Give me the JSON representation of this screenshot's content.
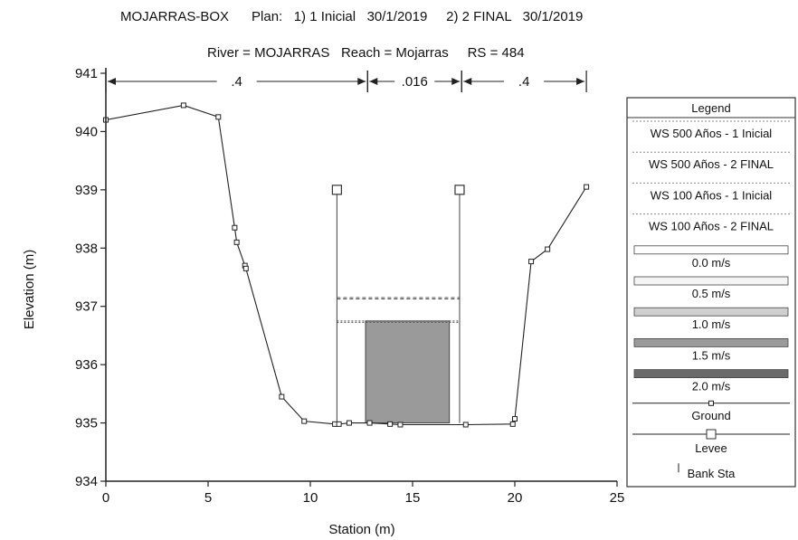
{
  "chart_data": {
    "type": "line",
    "title": "MOJARRAS-BOX      Plan:   1) 1 Inicial   30/1/2019     2) 2 FINAL   30/1/2019",
    "subtitle": "River = MOJARRAS   Reach = Mojarras     RS = 484",
    "xlabel": "Station (m)",
    "ylabel": "Elevation (m)",
    "xlim": [
      0,
      25
    ],
    "ylim": [
      934,
      941
    ],
    "x_ticks": [
      "0",
      "5",
      "10",
      "15",
      "20",
      "25"
    ],
    "y_ticks": [
      "934",
      "935",
      "936",
      "937",
      "938",
      "939",
      "940",
      "941"
    ],
    "mannings_n": [
      {
        "label": ".4",
        "from": 0,
        "to": 12.8
      },
      {
        "label": ".016",
        "from": 12.8,
        "to": 17.4
      },
      {
        "label": ".4",
        "from": 17.4,
        "to": 23.5
      }
    ],
    "ground": {
      "name": "Ground",
      "x": [
        0,
        3.8,
        5.5,
        6.3,
        6.4,
        6.8,
        6.85,
        8.6,
        9.7,
        11.2,
        11.4,
        11.9,
        12.9,
        13.9,
        14.4,
        17.6,
        19.9,
        20.0,
        20.8,
        21.6,
        23.5
      ],
      "y": [
        940.2,
        940.45,
        940.25,
        938.35,
        938.1,
        937.7,
        937.65,
        935.45,
        935.03,
        934.98,
        934.98,
        935.0,
        935.0,
        934.98,
        934.97,
        934.97,
        934.98,
        935.07,
        937.77,
        937.98,
        939.05
      ]
    },
    "levees": [
      {
        "name": "Levee",
        "x": 11.3,
        "y": 939.0
      },
      {
        "name": "Levee",
        "x": 17.3,
        "y": 939.0
      }
    ],
    "water_surfaces": [
      {
        "name": "WS 500 Años - 1 Inicial",
        "y": 937.15,
        "x_from": 11.3,
        "x_to": 17.3
      },
      {
        "name": "WS 500 Años - 2 FINAL",
        "y": 937.15,
        "x_from": 11.3,
        "x_to": 17.3
      },
      {
        "name": "WS 100 Años - 1 Inicial",
        "y": 936.75,
        "x_from": 11.3,
        "x_to": 17.3
      },
      {
        "name": "WS 100 Años - 2 FINAL",
        "y": 936.75,
        "x_from": 11.3,
        "x_to": 17.3
      }
    ],
    "velocity_block": {
      "x_from": 12.7,
      "x_to": 16.8,
      "y_from": 935.0,
      "y_to": 936.75,
      "velocity_class": "1.5 m/s"
    },
    "legend": {
      "title": "Legend",
      "placement": "right",
      "entries": [
        {
          "label": "WS 500 Años - 1 Inicial",
          "kind": "line"
        },
        {
          "label": "WS 500 Años - 2 FINAL",
          "kind": "line"
        },
        {
          "label": "WS 100 Años - 1 Inicial",
          "kind": "line"
        },
        {
          "label": "WS 100 Años - 2 FINAL",
          "kind": "line"
        },
        {
          "label": "0.0 m/s",
          "kind": "swatch",
          "color": "#ffffff"
        },
        {
          "label": "0.5 m/s",
          "kind": "swatch",
          "color": "#f4f4f4"
        },
        {
          "label": "1.0 m/s",
          "kind": "swatch",
          "color": "#cfcfcf"
        },
        {
          "label": "1.5 m/s",
          "kind": "swatch",
          "color": "#9a9a9a"
        },
        {
          "label": "2.0 m/s",
          "kind": "swatch",
          "color": "#6a6a6a"
        },
        {
          "label": "Ground",
          "kind": "ground"
        },
        {
          "label": "Levee",
          "kind": "levee"
        },
        {
          "label": "Bank Sta",
          "kind": "bank"
        }
      ]
    },
    "grid": false
  }
}
